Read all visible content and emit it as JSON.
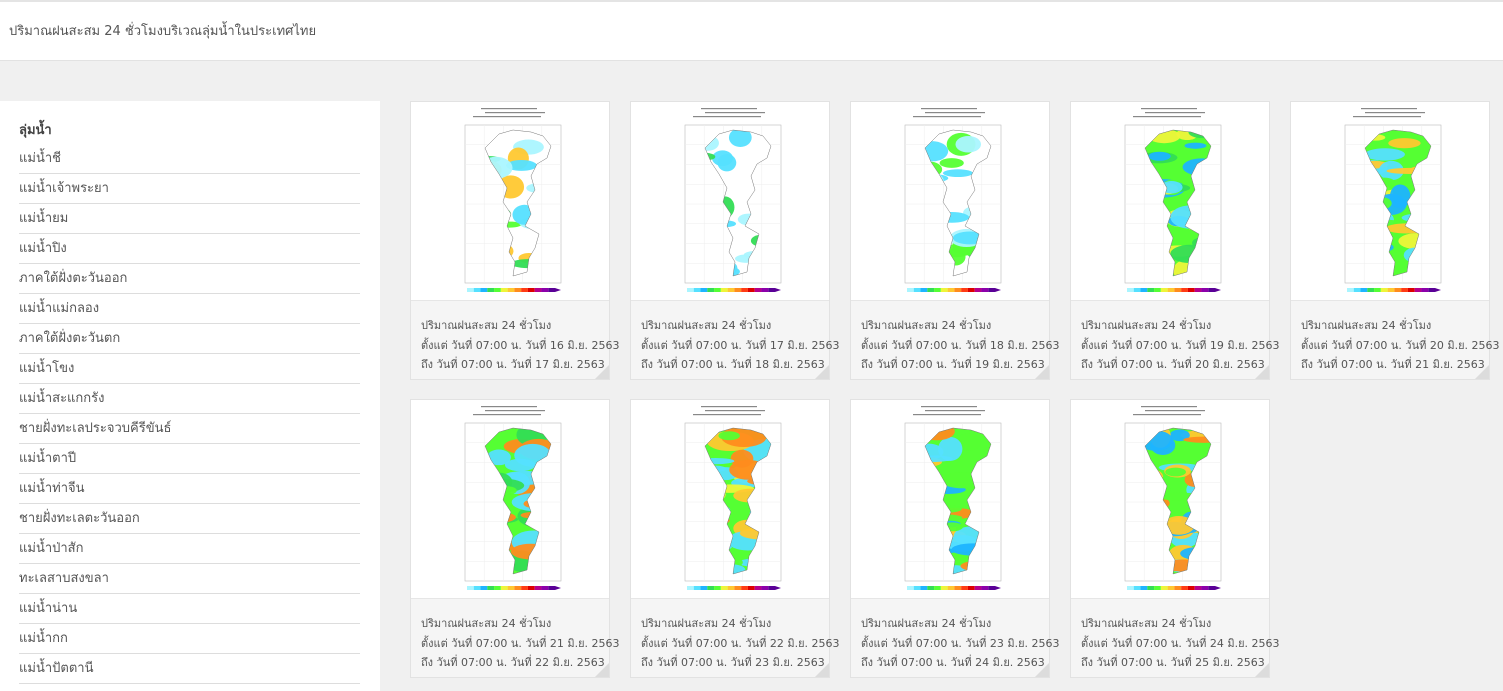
{
  "header": {
    "title": "ปริมาณฝนสะสม 24 ชั่วโมงบริเวณลุ่มน้ำในประเทศไทย"
  },
  "sidebar": {
    "heading": "ลุ่มน้ำ",
    "items": [
      "แม่น้ำชี",
      "แม่น้ำเจ้าพระยา",
      "แม่น้ำยม",
      "แม่น้ำปิง",
      "ภาคใต้ฝั่งตะวันออก",
      "แม่น้ำแม่กลอง",
      "ภาคใต้ฝั่งตะวันตก",
      "แม่น้ำโขง",
      "แม่น้ำสะแกกรัง",
      "ชายฝั่งทะเลประจวบคีรีขันธ์",
      "แม่น้ำตาปี",
      "แม่น้ำท่าจีน",
      "ชายฝั่งทะเลตะวันออก",
      "แม่น้ำป่าสัก",
      "ทะเลสาบสงขลา",
      "แม่น้ำน่าน",
      "แม่น้ำกก",
      "แม่น้ำปัตตานี"
    ]
  },
  "legend_colors": [
    "#aaf5ff",
    "#55e0ff",
    "#1eb4ff",
    "#33dd55",
    "#55ff33",
    "#eef53a",
    "#ffc830",
    "#ff8c1e",
    "#ff3c14",
    "#dd0000",
    "#b4008c",
    "#8c00aa",
    "#5a0096"
  ],
  "cards": [
    {
      "caption_title": "ปริมาณฝนสะสม 24 ชั่วโมง",
      "caption_from": "ตั้งแต่ วันที่ 07:00 น. วันที่ 16 มิ.ย. 2563",
      "caption_to": "ถึง วันที่ 07:00 น. วันที่ 17 มิ.ย. 2563",
      "palette": [
        "#55e0ff",
        "#aaf5ff",
        "#33dd55",
        "#55ff33",
        "#ffc830"
      ],
      "rain_level": 0.55
    },
    {
      "caption_title": "ปริมาณฝนสะสม 24 ชั่วโมง",
      "caption_from": "ตั้งแต่ วันที่ 07:00 น. วันที่ 17 มิ.ย. 2563",
      "caption_to": "ถึง วันที่ 07:00 น. วันที่ 18 มิ.ย. 2563",
      "palette": [
        "#aaf5ff",
        "#55e0ff",
        "#33dd55"
      ],
      "rain_level": 0.2
    },
    {
      "caption_title": "ปริมาณฝนสะสม 24 ชั่วโมง",
      "caption_from": "ตั้งแต่ วันที่ 07:00 น. วันที่ 18 มิ.ย. 2563",
      "caption_to": "ถึง วันที่ 07:00 น. วันที่ 19 มิ.ย. 2563",
      "palette": [
        "#aaf5ff",
        "#55e0ff",
        "#33dd55",
        "#55ff33"
      ],
      "rain_level": 0.6
    },
    {
      "caption_title": "ปริมาณฝนสะสม 24 ชั่วโมง",
      "caption_from": "ตั้งแต่ วันที่ 07:00 น. วันที่ 19 มิ.ย. 2563",
      "caption_to": "ถึง วันที่ 07:00 น. วันที่ 20 มิ.ย. 2563",
      "palette": [
        "#55ff33",
        "#1eb4ff",
        "#55e0ff",
        "#eef53a",
        "#33dd55"
      ],
      "rain_level": 0.9
    },
    {
      "caption_title": "ปริมาณฝนสะสม 24 ชั่วโมง",
      "caption_from": "ตั้งแต่ วันที่ 07:00 น. วันที่ 20 มิ.ย. 2563",
      "caption_to": "ถึง วันที่ 07:00 น. วันที่ 21 มิ.ย. 2563",
      "palette": [
        "#55ff33",
        "#1eb4ff",
        "#55e0ff",
        "#ffc830",
        "#eef53a"
      ],
      "rain_level": 0.9
    },
    {
      "caption_title": "ปริมาณฝนสะสม 24 ชั่วโมง",
      "caption_from": "ตั้งแต่ วันที่ 07:00 น. วันที่ 21 มิ.ย. 2563",
      "caption_to": "ถึง วันที่ 07:00 น. วันที่ 22 มิ.ย. 2563",
      "palette": [
        "#55ff33",
        "#33dd55",
        "#ff8c1e",
        "#55e0ff"
      ],
      "rain_level": 0.95
    },
    {
      "caption_title": "ปริมาณฝนสะสม 24 ชั่วโมง",
      "caption_from": "ตั้งแต่ วันที่ 07:00 น. วันที่ 22 มิ.ย. 2563",
      "caption_to": "ถึง วันที่ 07:00 น. วันที่ 23 มิ.ย. 2563",
      "palette": [
        "#55ff33",
        "#ffc830",
        "#55e0ff",
        "#ff8c1e",
        "#eef53a"
      ],
      "rain_level": 0.95
    },
    {
      "caption_title": "ปริมาณฝนสะสม 24 ชั่วโมง",
      "caption_from": "ตั้งแต่ วันที่ 07:00 น. วันที่ 23 มิ.ย. 2563",
      "caption_to": "ถึง วันที่ 07:00 น. วันที่ 24 มิ.ย. 2563",
      "palette": [
        "#55ff33",
        "#ff8c1e",
        "#ffc830",
        "#55e0ff",
        "#1eb4ff"
      ],
      "rain_level": 0.95
    },
    {
      "caption_title": "ปริมาณฝนสะสม 24 ชั่วโมง",
      "caption_from": "ตั้งแต่ วันที่ 07:00 น. วันที่ 24 มิ.ย. 2563",
      "caption_to": "ถึง วันที่ 07:00 น. วันที่ 25 มิ.ย. 2563",
      "palette": [
        "#55ff33",
        "#ff8c1e",
        "#55e0ff",
        "#ffc830",
        "#1eb4ff"
      ],
      "rain_level": 0.95
    }
  ]
}
